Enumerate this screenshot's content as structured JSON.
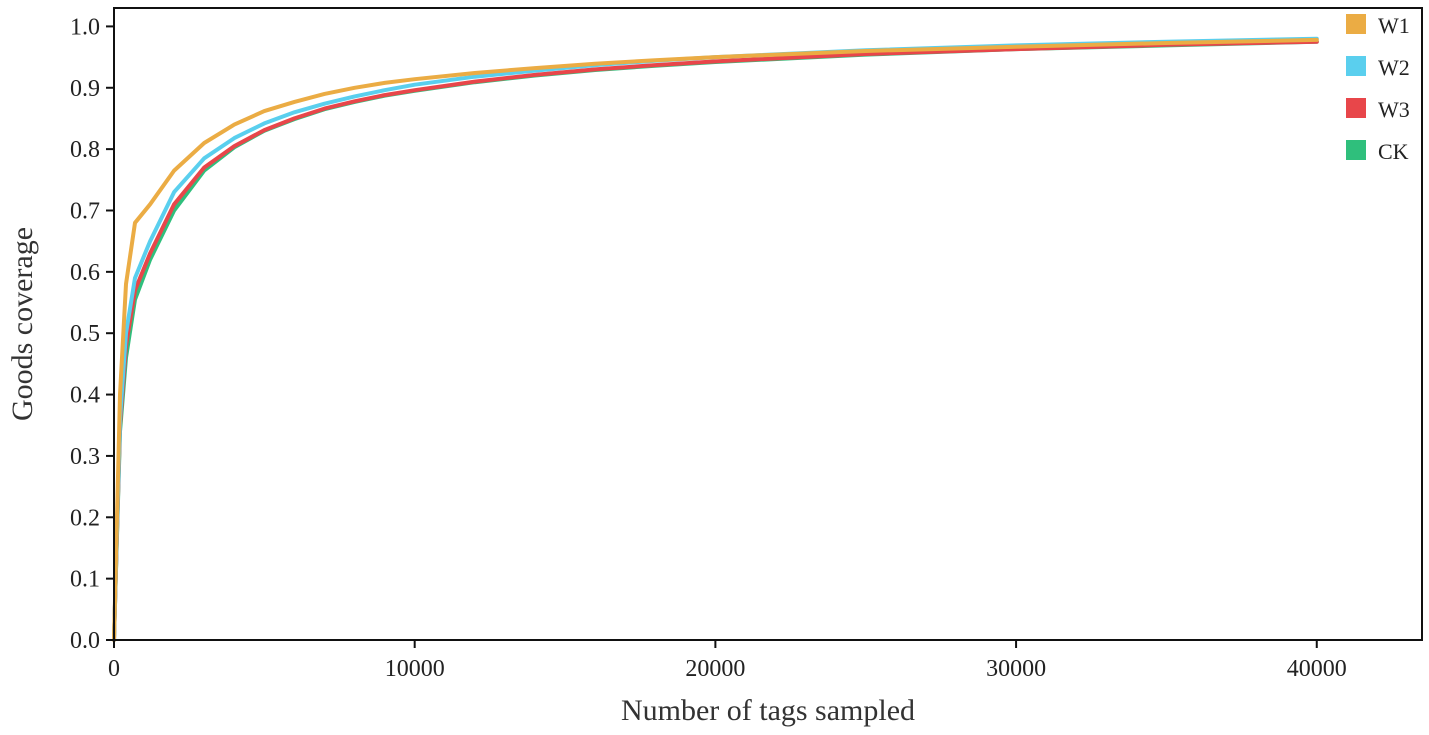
{
  "chart_data": {
    "type": "line",
    "title": "",
    "xlabel": "Number of tags sampled",
    "ylabel": "Goods coverage",
    "xlim": [
      0,
      43500
    ],
    "ylim": [
      0,
      1.03
    ],
    "xticks": [
      0,
      10000,
      20000,
      30000,
      40000
    ],
    "xtick_labels": [
      "0",
      "10000",
      "20000",
      "30000",
      "40000"
    ],
    "yticks": [
      0.0,
      0.1,
      0.2,
      0.3,
      0.4,
      0.5,
      0.6,
      0.7,
      0.8,
      0.9,
      1.0
    ],
    "ytick_labels": [
      "0.0",
      "0.1",
      "0.2",
      "0.3",
      "0.4",
      "0.5",
      "0.6",
      "0.7",
      "0.8",
      "0.9",
      "1.0"
    ],
    "grid": false,
    "legend_position": "top-right",
    "series": [
      {
        "name": "W1",
        "color": "#EBAC44",
        "x": [
          0,
          200,
          400,
          700,
          1200,
          2000,
          3000,
          4000,
          5000,
          6000,
          7000,
          8000,
          9000,
          10000,
          12000,
          14000,
          16000,
          18000,
          20000,
          25000,
          30000,
          35000,
          40000
        ],
        "y": [
          0,
          0.4,
          0.58,
          0.68,
          0.71,
          0.765,
          0.81,
          0.84,
          0.862,
          0.877,
          0.89,
          0.9,
          0.908,
          0.914,
          0.924,
          0.932,
          0.939,
          0.945,
          0.95,
          0.96,
          0.967,
          0.973,
          0.978
        ]
      },
      {
        "name": "W2",
        "color": "#5ACFEE",
        "x": [
          0,
          200,
          400,
          700,
          1200,
          2000,
          3000,
          4000,
          5000,
          6000,
          7000,
          8000,
          9000,
          10000,
          12000,
          14000,
          16000,
          18000,
          20000,
          25000,
          30000,
          35000,
          40000
        ],
        "y": [
          0,
          0.36,
          0.5,
          0.59,
          0.65,
          0.73,
          0.785,
          0.818,
          0.842,
          0.86,
          0.874,
          0.886,
          0.896,
          0.905,
          0.918,
          0.928,
          0.937,
          0.944,
          0.95,
          0.961,
          0.969,
          0.975,
          0.98
        ]
      },
      {
        "name": "W3",
        "color": "#E8464A",
        "x": [
          0,
          200,
          400,
          700,
          1200,
          2000,
          3000,
          4000,
          5000,
          6000,
          7000,
          8000,
          9000,
          10000,
          12000,
          14000,
          16000,
          18000,
          20000,
          25000,
          30000,
          35000,
          40000
        ],
        "y": [
          0,
          0.35,
          0.48,
          0.57,
          0.63,
          0.71,
          0.77,
          0.805,
          0.831,
          0.85,
          0.866,
          0.878,
          0.888,
          0.896,
          0.91,
          0.921,
          0.93,
          0.937,
          0.943,
          0.955,
          0.963,
          0.97,
          0.975
        ]
      },
      {
        "name": "CK",
        "color": "#2FBF7C",
        "x": [
          0,
          200,
          400,
          700,
          1200,
          2000,
          3000,
          4000,
          5000,
          6000,
          7000,
          8000,
          9000,
          10000,
          12000,
          14000,
          16000,
          18000,
          20000,
          25000,
          30000,
          35000,
          40000
        ],
        "y": [
          0,
          0.34,
          0.46,
          0.555,
          0.62,
          0.7,
          0.765,
          0.803,
          0.83,
          0.849,
          0.865,
          0.877,
          0.887,
          0.895,
          0.909,
          0.92,
          0.929,
          0.936,
          0.942,
          0.954,
          0.963,
          0.969,
          0.975
        ]
      }
    ]
  }
}
